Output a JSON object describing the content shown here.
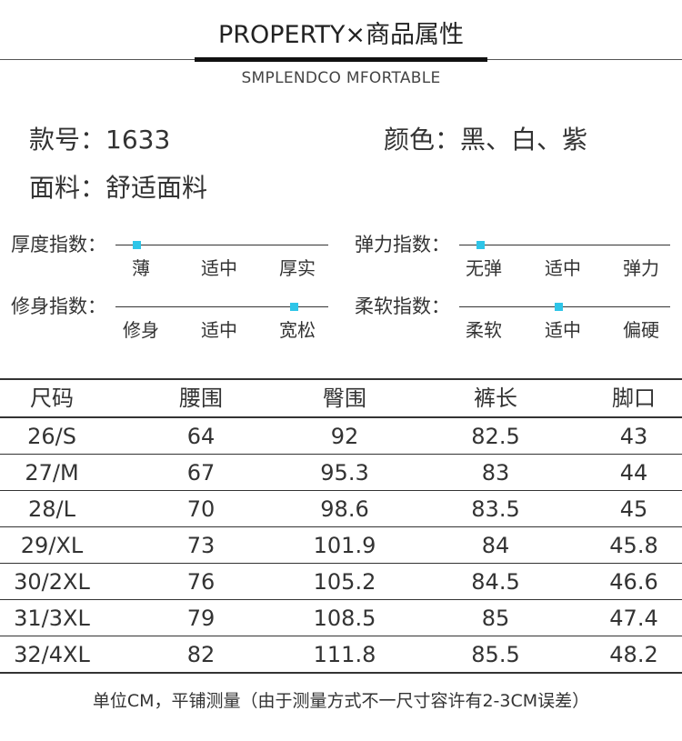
{
  "header": {
    "title": "PROPERTY×商品属性",
    "subtitle": "SMPLENDCO MFORTABLE"
  },
  "info": {
    "model": "款号：1633",
    "color": "颜色：黑、白、紫",
    "fabric": "面料：舒适面料"
  },
  "indices": [
    {
      "label": "厚度指数：",
      "options": [
        "薄",
        "适中",
        "厚实"
      ],
      "selected_option": "薄"
    },
    {
      "label": "弹力指数：",
      "options": [
        "无弹",
        "适中",
        "弹力"
      ],
      "selected_option": "无弹"
    },
    {
      "label": "修身指数：",
      "options": [
        "修身",
        "适中",
        "宽松"
      ],
      "selected_option": "宽松"
    },
    {
      "label": "柔软指数：",
      "options": [
        "柔软",
        "适中",
        "偏硬"
      ],
      "selected_option": "适中"
    }
  ],
  "indicator_color": "#2ec5e8",
  "size_table": {
    "headers": [
      "尺码",
      "腰围",
      "臀围",
      "裤长",
      "脚口"
    ],
    "rows": [
      [
        "26/S",
        "64",
        "92",
        "82.5",
        "43"
      ],
      [
        "27/M",
        "67",
        "95.3",
        "83",
        "44"
      ],
      [
        "28/L",
        "70",
        "98.6",
        "83.5",
        "45"
      ],
      [
        "29/XL",
        "73",
        "101.9",
        "84",
        "45.8"
      ],
      [
        "30/2XL",
        "76",
        "105.2",
        "84.5",
        "46.6"
      ],
      [
        "31/3XL",
        "79",
        "108.5",
        "85",
        "47.4"
      ],
      [
        "32/4XL",
        "82",
        "111.8",
        "85.5",
        "48.2"
      ]
    ]
  },
  "footer": {
    "note": "单位CM，平铺测量（由于测量方式不一尺寸容许有2-3CM误差）"
  }
}
